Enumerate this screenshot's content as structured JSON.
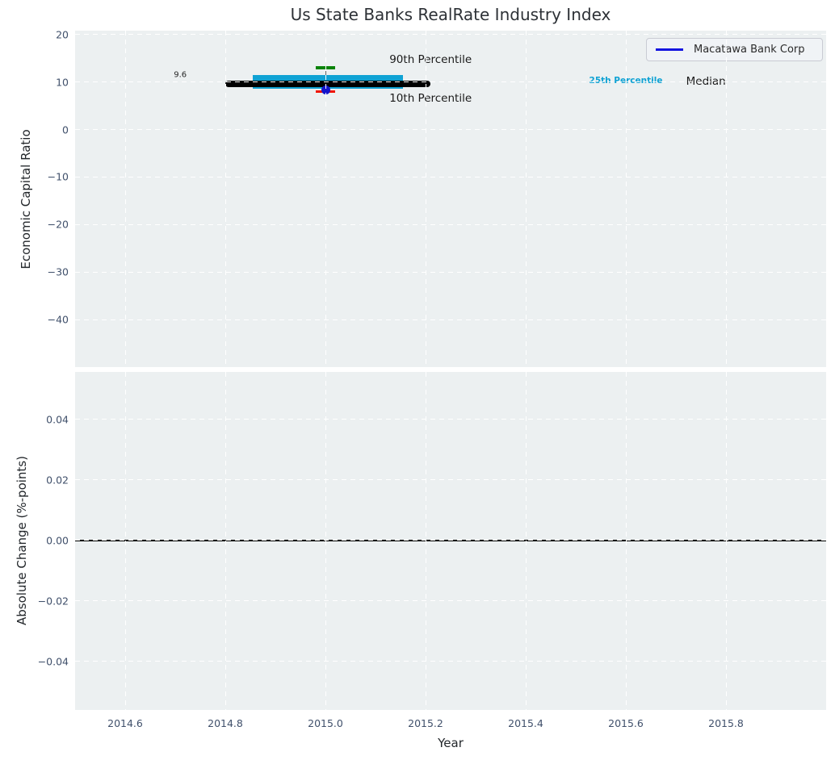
{
  "title": "Us State Banks RealRate Industry Index",
  "legend": {
    "label": "Macatawa Bank Corp",
    "line_color": "#1414e0"
  },
  "colors": {
    "plot_bg": "#ecf0f1",
    "grid": "#ffffff",
    "tick_label": "#40506b",
    "text": "#23272b",
    "percentile_band": "#0fa2d4",
    "p90_marker": "#0a830a",
    "p10_marker": "#f01400",
    "median_line": "#000000",
    "company_dot": "#1414cc",
    "zero_line": "#000000",
    "whisker": "#666666"
  },
  "chart_data": [
    {
      "type": "boxplot",
      "title": "Us State Banks RealRate Industry Index",
      "xlabel": "Year",
      "ylabel": "Economic Capital Ratio",
      "xlim": [
        2014.5,
        2016.0
      ],
      "ylim": [
        -50,
        20.8
      ],
      "grid": true,
      "xticks": [
        2014.6,
        2014.8,
        2015.0,
        2015.2,
        2015.4,
        2015.6,
        2015.8
      ],
      "xtick_labels": [
        "2014.6",
        "2014.8",
        "2015.0",
        "2015.2",
        "2015.4",
        "2015.6",
        "2015.8"
      ],
      "yticks": [
        20,
        10,
        0,
        -10,
        -20,
        -30,
        -40
      ],
      "ytick_labels": [
        "20",
        "10",
        "0",
        "−10",
        "−20",
        "−30",
        "−40"
      ],
      "box": {
        "year": 2015.0,
        "p90": 13.0,
        "p75": 11.4,
        "median": 9.6,
        "p25": 8.6,
        "p10": 8.0,
        "company_value": 8.3,
        "median_span": [
          2014.8,
          2015.21
        ],
        "band_span": [
          2014.855,
          2015.155
        ],
        "tick_halfwidth": 0.02
      },
      "legend_entries": [
        "Macatawa Bank Corp"
      ],
      "legend_position": "upper right",
      "annotations": [
        {
          "text": "9.6",
          "x": 2014.71,
          "y": 11.5,
          "color": "#262626",
          "size": 10,
          "bold": false
        },
        {
          "text": "90th Percentile",
          "x": 2015.21,
          "y": 14.7,
          "color": "#1a1a1a",
          "size": 13.5,
          "bold": false
        },
        {
          "text": "10th Percentile",
          "x": 2015.21,
          "y": 6.5,
          "color": "#1a1a1a",
          "size": 13.5,
          "bold": false
        },
        {
          "text": "25th Percentile",
          "x": 2015.6,
          "y": 10.3,
          "color": "#0fa2d4",
          "size": 10.5,
          "bold": true
        },
        {
          "text": "Median",
          "x": 2015.76,
          "y": 10.1,
          "color": "#1a1a1a",
          "size": 13.5,
          "bold": false
        }
      ]
    },
    {
      "type": "line",
      "xlabel": "Year",
      "ylabel": "Absolute Change (%-points)",
      "xlim": [
        2014.5,
        2016.0
      ],
      "ylim": [
        -0.056,
        0.0557
      ],
      "grid": true,
      "xticks": [
        2014.6,
        2014.8,
        2015.0,
        2015.2,
        2015.4,
        2015.6,
        2015.8
      ],
      "xtick_labels": [
        "2014.6",
        "2014.8",
        "2015.0",
        "2015.2",
        "2015.4",
        "2015.6",
        "2015.8"
      ],
      "yticks": [
        0.04,
        0.02,
        0.0,
        -0.02,
        -0.04
      ],
      "ytick_labels": [
        "0.04",
        "0.02",
        "0.00",
        "−0.02",
        "−0.04"
      ],
      "zero_line_y": 0.0,
      "series": []
    }
  ]
}
